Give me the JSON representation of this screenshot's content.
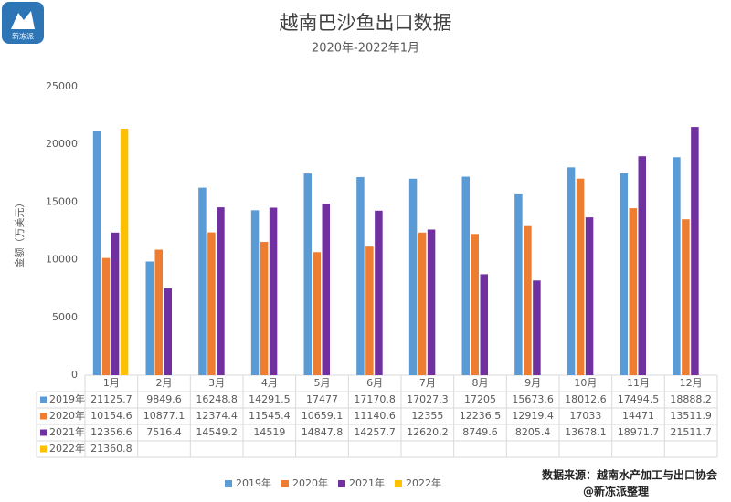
{
  "logo": "新冻派",
  "chart_data": {
    "type": "bar",
    "title": "越南巴沙鱼出口数据",
    "subtitle": "2020年-2022年1月",
    "y_label": "金额（万美元）",
    "source": "数据来源：越南水产加工与出口协会",
    "credit": "@新冻派整理",
    "categories": [
      "1月",
      "2月",
      "3月",
      "4月",
      "5月",
      "6月",
      "7月",
      "8月",
      "9月",
      "10月",
      "11月",
      "12月"
    ],
    "series": [
      {
        "name": "2019年",
        "color": "#5b9bd5",
        "values": [
          21125.7,
          9849.6,
          16248.8,
          14291.5,
          17477,
          17170.8,
          17027.3,
          17205,
          15673.6,
          18012.6,
          17494.5,
          18888.2
        ]
      },
      {
        "name": "2020年",
        "color": "#ed7d31",
        "values": [
          10154.6,
          10877.1,
          12374.4,
          11545.4,
          10659.1,
          11140.6,
          12355,
          12236.5,
          12919.4,
          17033,
          14471,
          13511.9
        ]
      },
      {
        "name": "2021年",
        "color": "#7030a0",
        "values": [
          12356.6,
          7516.4,
          14549.2,
          14519,
          14847.8,
          14257.7,
          12620.2,
          8749.6,
          8205.4,
          13678.1,
          18971.7,
          21511.7
        ]
      },
      {
        "name": "2022年",
        "color": "#ffc000",
        "values": [
          21360.8,
          null,
          null,
          null,
          null,
          null,
          null,
          null,
          null,
          null,
          null,
          null
        ]
      }
    ],
    "ylim": [
      0,
      25000
    ],
    "yticks": [
      0,
      5000,
      10000,
      15000,
      20000,
      25000
    ],
    "grid": false,
    "legend": "bottom"
  }
}
